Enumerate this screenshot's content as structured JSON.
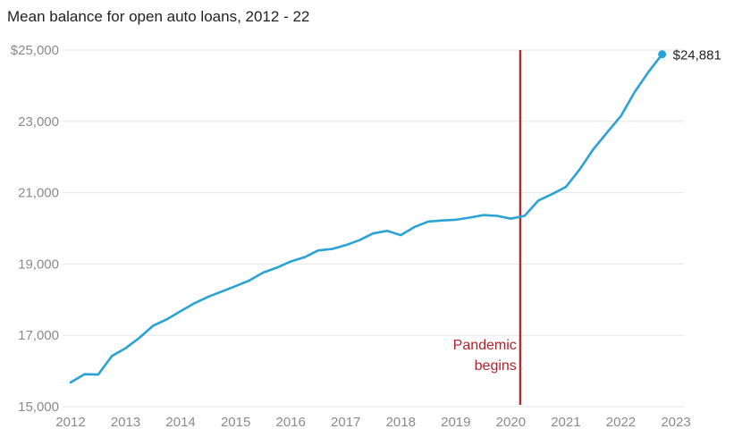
{
  "chart_data": {
    "type": "line",
    "title": "Mean balance for open auto loans, 2012 - 22",
    "xlabel": "",
    "ylabel": "",
    "xlim": [
      2012,
      2023
    ],
    "ylim": [
      15000,
      25000
    ],
    "grid": true,
    "x_ticks": [
      2012,
      2013,
      2014,
      2015,
      2016,
      2017,
      2018,
      2019,
      2020,
      2021,
      2022,
      2023
    ],
    "x_tick_labels": [
      "2012",
      "2013",
      "2014",
      "2015",
      "2016",
      "2017",
      "2018",
      "2019",
      "2020",
      "2021",
      "2022",
      "2023"
    ],
    "y_ticks": [
      15000,
      17000,
      19000,
      21000,
      23000,
      25000
    ],
    "y_tick_labels": [
      "15,000",
      "17,000",
      "19,000",
      "21,000",
      "23,000",
      "$25,000"
    ],
    "series": [
      {
        "color": "#2aa3d4",
        "x": [
          2012.0,
          2012.25,
          2012.5,
          2012.75,
          2013.0,
          2013.25,
          2013.5,
          2013.75,
          2014.0,
          2014.25,
          2014.5,
          2014.75,
          2015.0,
          2015.25,
          2015.5,
          2015.75,
          2016.0,
          2016.25,
          2016.5,
          2016.75,
          2017.0,
          2017.25,
          2017.5,
          2017.75,
          2018.0,
          2018.25,
          2018.5,
          2018.75,
          2019.0,
          2019.25,
          2019.5,
          2019.75,
          2020.0,
          2020.25,
          2020.5,
          2020.75,
          2021.0,
          2021.25,
          2021.5,
          2021.75,
          2022.0,
          2022.25,
          2022.5,
          2022.75
        ],
        "values": [
          15680,
          15910,
          15900,
          16420,
          16640,
          16930,
          17270,
          17450,
          17680,
          17900,
          18080,
          18230,
          18380,
          18540,
          18760,
          18900,
          19070,
          19190,
          19380,
          19420,
          19530,
          19670,
          19860,
          19930,
          19810,
          20040,
          20190,
          20220,
          20240,
          20300,
          20370,
          20350,
          20270,
          20350,
          20780,
          20960,
          21160,
          21650,
          22220,
          22690,
          23150,
          23820,
          24380,
          24881
        ]
      }
    ],
    "end_label": "$24,881",
    "annotation": {
      "x": 2020.17,
      "line1": "Pandemic",
      "line2": "begins",
      "color": "#b3212a"
    },
    "colors": {
      "grid": "#e6e6e6",
      "tick_text": "#8a8a8a"
    }
  }
}
